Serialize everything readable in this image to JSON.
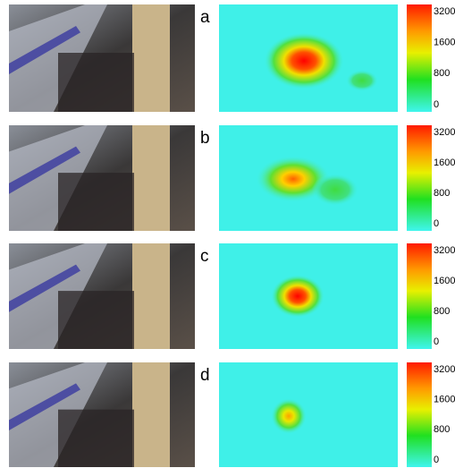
{
  "panels": [
    {
      "label": "a"
    },
    {
      "label": "b"
    },
    {
      "label": "c"
    },
    {
      "label": "d"
    }
  ],
  "colorbar": {
    "ticks": [
      3200,
      1600,
      800,
      0
    ]
  }
}
